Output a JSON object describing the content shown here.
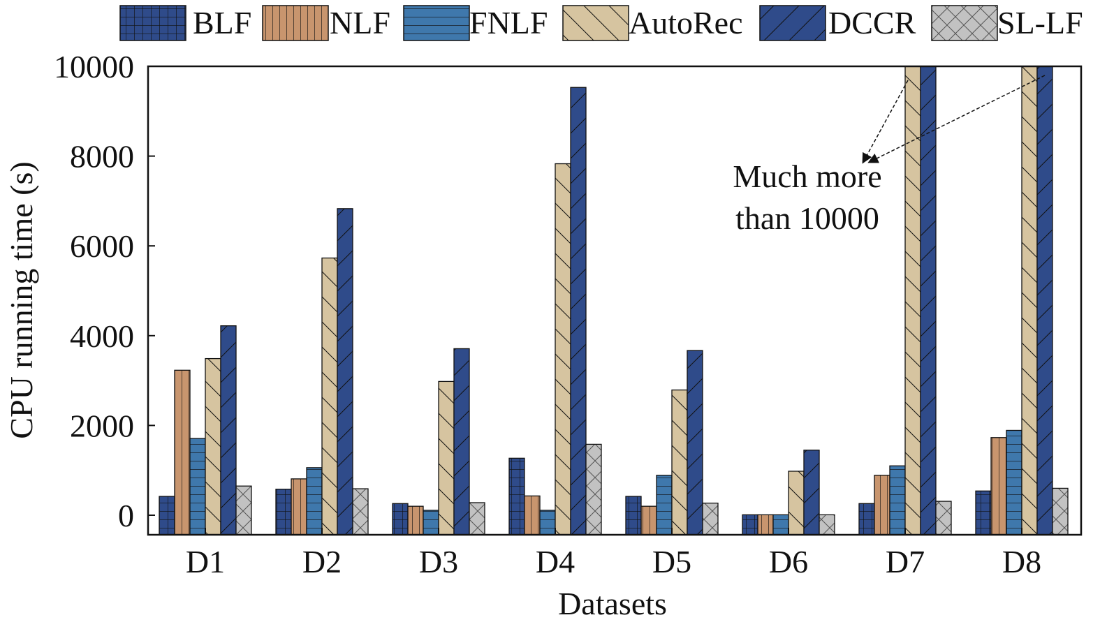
{
  "chart_data": {
    "type": "bar",
    "xlabel": "Datasets",
    "ylabel": "CPU running time (s)",
    "ylim": [
      0,
      10000
    ],
    "yticks": [
      "0",
      "2000",
      "4000",
      "6000",
      "8000",
      "10000"
    ],
    "categories": [
      "D1",
      "D2",
      "D3",
      "D4",
      "D5",
      "D6",
      "D7",
      "D8"
    ],
    "legend_position": "top",
    "grid": false,
    "series": [
      {
        "name": "BLF",
        "color": "#2f4b8a",
        "pattern": "grid",
        "values": [
          420,
          580,
          260,
          1270,
          420,
          10,
          260,
          540
        ]
      },
      {
        "name": "NLF",
        "color": "#c8956e",
        "pattern": "vertical",
        "values": [
          3230,
          810,
          200,
          430,
          200,
          10,
          890,
          1730
        ]
      },
      {
        "name": "FNLF",
        "color": "#3f78ac",
        "pattern": "horizontal",
        "values": [
          1710,
          1060,
          110,
          110,
          890,
          10,
          1100,
          1890
        ]
      },
      {
        "name": "AutoRec",
        "color": "#d6c4a0",
        "pattern": "backslash",
        "values": [
          3490,
          5730,
          2980,
          7830,
          2790,
          980,
          10000,
          10000
        ]
      },
      {
        "name": "DCCR",
        "color": "#2f4b8a",
        "pattern": "slash",
        "values": [
          4220,
          6830,
          3710,
          9530,
          3670,
          1450,
          10000,
          10000
        ]
      },
      {
        "name": "SL-LF",
        "color": "#c2c2c2",
        "pattern": "cross",
        "values": [
          650,
          590,
          280,
          1580,
          270,
          10,
          310,
          600
        ]
      }
    ],
    "annotation": {
      "lines": [
        "Much more",
        "than 10000"
      ]
    }
  }
}
